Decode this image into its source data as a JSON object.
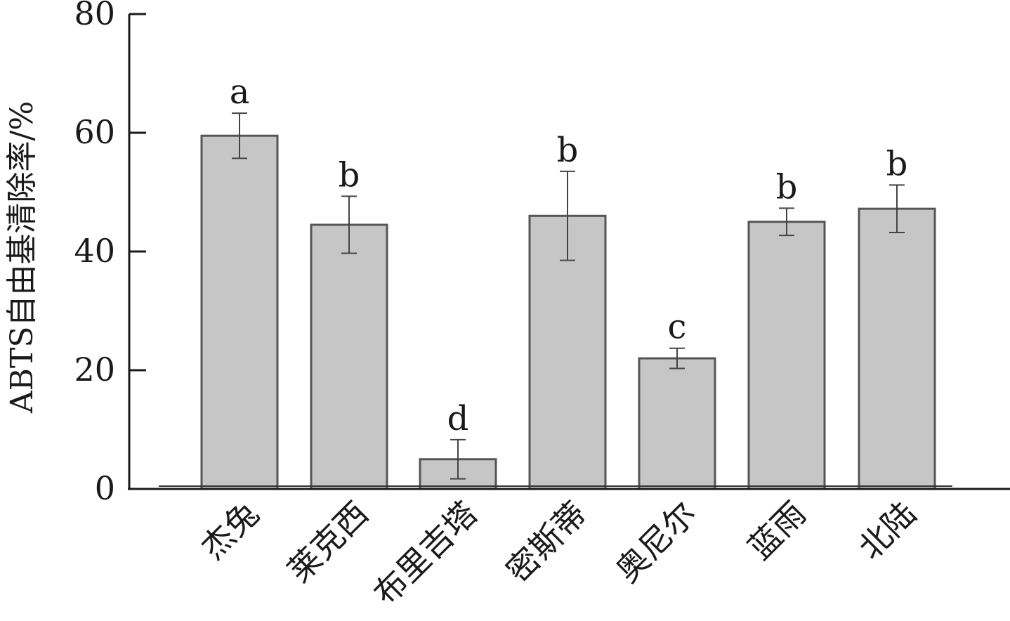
{
  "chart_data": {
    "type": "bar",
    "title": "",
    "xlabel": "",
    "ylabel": "ABTS自由基清除率/%",
    "ylim": [
      0,
      80
    ],
    "yticks": [
      "0",
      "20",
      "40",
      "60",
      "80"
    ],
    "categories": [
      "杰兔",
      "莱克西",
      "布里吉塔",
      "密斯蒂",
      "奥尼尔",
      "蓝雨",
      "北陆"
    ],
    "values": [
      59.5,
      44.5,
      5,
      46,
      22,
      45,
      47.2
    ],
    "errors": [
      3.8,
      4.8,
      3.3,
      7.5,
      1.7,
      2.3,
      4.0
    ],
    "significance": [
      "a",
      "b",
      "d",
      "b",
      "c",
      "b",
      "b"
    ],
    "grid": false,
    "bar_color": "#c6c6c6",
    "bar_edge_color": "#555555",
    "axis_color": "#1a1a1a"
  }
}
